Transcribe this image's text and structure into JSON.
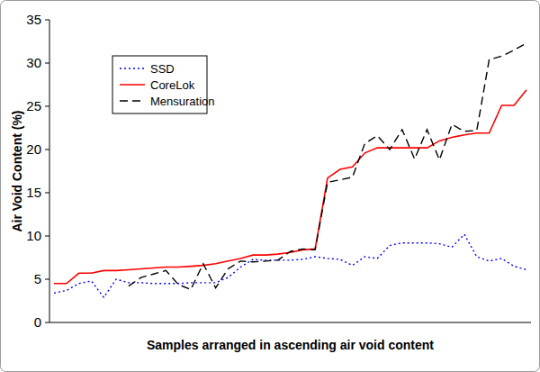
{
  "chart_data": {
    "type": "line",
    "x_label": "Samples arranged in ascending air void content",
    "y_label": "Air Void Content (%)",
    "categories": [
      null,
      null,
      null,
      null,
      null,
      null,
      null,
      null,
      null,
      null,
      null,
      null,
      null,
      null,
      null,
      null,
      null,
      null,
      null,
      null,
      null,
      null,
      null,
      null,
      null,
      null,
      null,
      null,
      null,
      null,
      null,
      null,
      null,
      null,
      null,
      null,
      null,
      null,
      null
    ],
    "series": [
      {
        "name": "SSD",
        "color": "#0000ff",
        "line_style": "dotted",
        "values": [
          3.4,
          3.7,
          4.5,
          4.8,
          2.9,
          5.0,
          4.6,
          4.6,
          4.5,
          4.5,
          4.5,
          4.6,
          4.6,
          4.6,
          5.2,
          6.4,
          7.3,
          7.2,
          7.2,
          7.2,
          7.3,
          7.6,
          7.4,
          7.3,
          6.6,
          7.6,
          7.4,
          8.9,
          9.2,
          9.2,
          9.2,
          9.1,
          8.7,
          10.2,
          7.6,
          7.1,
          7.4,
          6.5,
          6.1
        ]
      },
      {
        "name": "CoreLok",
        "color": "#ff0000",
        "line_style": "solid",
        "values": [
          4.5,
          4.5,
          5.7,
          5.7,
          6.0,
          6.0,
          6.1,
          6.2,
          6.3,
          6.4,
          6.4,
          6.5,
          6.6,
          6.8,
          7.1,
          7.4,
          7.8,
          7.8,
          7.9,
          8.1,
          8.4,
          8.5,
          16.7,
          17.7,
          18.0,
          19.6,
          20.2,
          20.2,
          20.2,
          20.2,
          20.2,
          21.0,
          21.4,
          21.7,
          21.9,
          21.9,
          25.1,
          25.1,
          26.9
        ]
      },
      {
        "name": "Mensuration",
        "color": "#000000",
        "line_style": "dashed",
        "values": [
          null,
          null,
          null,
          null,
          null,
          null,
          4.2,
          5.2,
          5.6,
          6.0,
          4.4,
          3.8,
          6.8,
          4.0,
          6.2,
          7.1,
          7.0,
          7.1,
          7.2,
          8.2,
          8.5,
          8.4,
          16.2,
          16.5,
          16.8,
          20.7,
          21.6,
          20.0,
          22.3,
          18.9,
          22.3,
          18.8,
          22.9,
          22.1,
          22.2,
          30.4,
          30.8,
          31.5,
          32.3
        ]
      }
    ],
    "ylim": [
      0,
      35
    ],
    "yticks": [
      0,
      5,
      10,
      15,
      20,
      25,
      30,
      35
    ],
    "grid": false,
    "legend": "upper left",
    "tick_labels": "y"
  }
}
